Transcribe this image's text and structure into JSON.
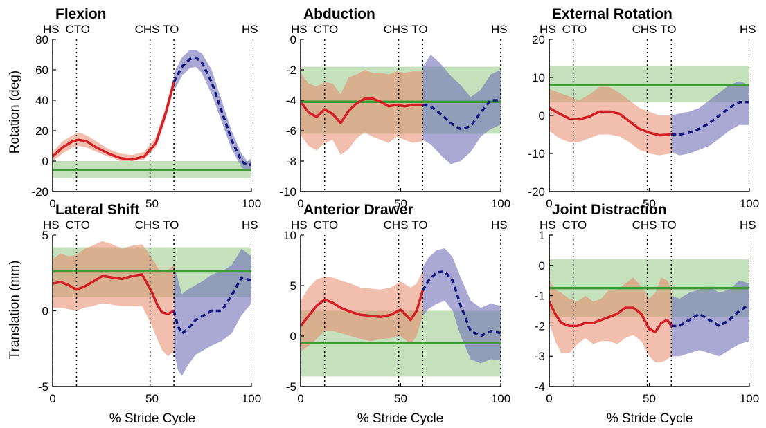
{
  "figure": {
    "ylabel_rotation": "Rotation (deg)",
    "ylabel_translation": "Translation (mm)",
    "xlabel": "% Stride Cycle"
  },
  "chart_data": [
    {
      "type": "line",
      "title": "Flexion",
      "xlabel": "% Stride Cycle",
      "ylabel": "Rotation (deg)",
      "xlim": [
        0,
        100
      ],
      "ylim": [
        -20,
        80
      ],
      "xticks": [
        0,
        50,
        100
      ],
      "yticks": [
        -20,
        0,
        20,
        40,
        60,
        80
      ],
      "events": [
        {
          "label": "HS",
          "x": 0
        },
        {
          "label": "CTO",
          "x": 12
        },
        {
          "label": "CHS",
          "x": 49
        },
        {
          "label": "TO",
          "x": 61
        },
        {
          "label": "HS",
          "x": 100
        }
      ],
      "band": {
        "y": -6,
        "lower": -11,
        "upper": 0
      },
      "stance": {
        "x": [
          0,
          5,
          10,
          13,
          17,
          22,
          28,
          34,
          40,
          46,
          52,
          57,
          61
        ],
        "y": [
          3,
          9,
          13,
          14,
          13,
          9,
          5,
          2,
          1,
          3,
          12,
          32,
          52
        ],
        "lower": [
          0,
          5,
          9,
          10,
          9,
          6,
          3,
          0,
          0,
          1,
          9,
          28,
          48
        ],
        "upper": [
          6,
          13,
          17,
          19,
          17,
          13,
          8,
          5,
          4,
          6,
          16,
          36,
          56
        ]
      },
      "swing": {
        "x": [
          61,
          65,
          69,
          72,
          75,
          80,
          85,
          90,
          95,
          98,
          100
        ],
        "y": [
          52,
          62,
          67,
          68,
          65,
          52,
          33,
          14,
          0,
          -3,
          -2
        ],
        "lower": [
          46,
          56,
          61,
          62,
          58,
          44,
          26,
          8,
          -4,
          -7,
          -5
        ],
        "upper": [
          58,
          68,
          73,
          73,
          71,
          60,
          40,
          20,
          5,
          0,
          2
        ]
      }
    },
    {
      "type": "line",
      "title": "Abduction",
      "xlabel": "% Stride Cycle",
      "ylabel": "",
      "xlim": [
        0,
        100
      ],
      "ylim": [
        -10,
        0
      ],
      "xticks": [
        0,
        50,
        100
      ],
      "yticks": [
        -10,
        -8,
        -6,
        -4,
        -2,
        0
      ],
      "events": [
        {
          "label": "HS",
          "x": 0
        },
        {
          "label": "CTO",
          "x": 12
        },
        {
          "label": "CHS",
          "x": 49
        },
        {
          "label": "TO",
          "x": 61
        },
        {
          "label": "HS",
          "x": 100
        }
      ],
      "band": {
        "y": -4.1,
        "lower": -6.2,
        "upper": -1.8
      },
      "stance": {
        "x": [
          0,
          4,
          8,
          12,
          16,
          20,
          24,
          28,
          32,
          36,
          40,
          44,
          48,
          52,
          56,
          61
        ],
        "y": [
          -4.1,
          -4.8,
          -5.1,
          -4.6,
          -4.9,
          -5.5,
          -4.7,
          -4.2,
          -3.9,
          -3.9,
          -4.1,
          -4.4,
          -4.3,
          -4.4,
          -4.3,
          -4.3
        ],
        "lower": [
          -6.3,
          -7.0,
          -7.3,
          -6.8,
          -6.6,
          -7.6,
          -7.2,
          -6.5,
          -6.1,
          -6.4,
          -6.6,
          -6.8,
          -6.4,
          -6.6,
          -6.8,
          -6.7
        ],
        "upper": [
          -2.2,
          -2.9,
          -3.1,
          -2.8,
          -2.9,
          -3.6,
          -2.5,
          -2.3,
          -2.0,
          -2.2,
          -2.2,
          -2.3,
          -2.1,
          -2.2,
          -2.1,
          -2.1
        ]
      },
      "swing": {
        "x": [
          61,
          65,
          70,
          75,
          80,
          85,
          90,
          95,
          100
        ],
        "y": [
          -4.3,
          -4.4,
          -4.9,
          -5.5,
          -5.9,
          -5.7,
          -4.8,
          -4.0,
          -4.0
        ],
        "lower": [
          -6.6,
          -6.9,
          -7.6,
          -8.2,
          -8.0,
          -7.4,
          -6.4,
          -5.9,
          -5.6
        ],
        "upper": [
          -1.8,
          -1.0,
          -1.6,
          -2.4,
          -3.0,
          -3.8,
          -3.3,
          -2.3,
          -2.0
        ]
      }
    },
    {
      "type": "line",
      "title": "External Rotation",
      "xlabel": "% Stride Cycle",
      "ylabel": "",
      "xlim": [
        0,
        100
      ],
      "ylim": [
        -20,
        20
      ],
      "xticks": [
        0,
        50,
        100
      ],
      "yticks": [
        -20,
        -10,
        0,
        10,
        20
      ],
      "events": [
        {
          "label": "HS",
          "x": 0
        },
        {
          "label": "CTO",
          "x": 12
        },
        {
          "label": "CHS",
          "x": 49
        },
        {
          "label": "TO",
          "x": 61
        },
        {
          "label": "HS",
          "x": 100
        }
      ],
      "band": {
        "y": 8,
        "lower": 3.5,
        "upper": 13
      },
      "stance": {
        "x": [
          0,
          5,
          10,
          15,
          20,
          25,
          30,
          35,
          40,
          45,
          50,
          55,
          61
        ],
        "y": [
          2,
          0.5,
          -0.8,
          -1,
          -0.3,
          1,
          1,
          0.5,
          -1.5,
          -3.5,
          -4.5,
          -5.2,
          -5.0
        ],
        "lower": [
          -4,
          -6,
          -7,
          -7,
          -6,
          -5,
          -5,
          -5.5,
          -7,
          -9,
          -10,
          -10.5,
          -10
        ],
        "upper": [
          7,
          6,
          5,
          4,
          5.5,
          7.5,
          7.5,
          6,
          4,
          2,
          1,
          0,
          0
        ]
      },
      "swing": {
        "x": [
          61,
          65,
          70,
          75,
          80,
          85,
          90,
          95,
          100
        ],
        "y": [
          -5.0,
          -5.0,
          -4.5,
          -3.5,
          -2.0,
          0.0,
          2.0,
          3.5,
          3.5
        ],
        "lower": [
          -9.5,
          -10.5,
          -10,
          -9,
          -8,
          -6,
          -4,
          -2.5,
          -2.5
        ],
        "upper": [
          0,
          0.5,
          1,
          2,
          4,
          6,
          8,
          9,
          8
        ]
      }
    },
    {
      "type": "line",
      "title": "Lateral Shift",
      "xlabel": "% Stride Cycle",
      "ylabel": "Translation (mm)",
      "xlim": [
        0,
        100
      ],
      "ylim": [
        -5,
        5
      ],
      "xticks": [
        0,
        50,
        100
      ],
      "yticks": [
        -5,
        0,
        5
      ],
      "events": [
        {
          "label": "HS",
          "x": 0
        },
        {
          "label": "CTO",
          "x": 12
        },
        {
          "label": "CHS",
          "x": 49
        },
        {
          "label": "TO",
          "x": 61
        },
        {
          "label": "HS",
          "x": 100
        }
      ],
      "band": {
        "y": 2.6,
        "lower": 0.9,
        "upper": 4.2
      },
      "stance": {
        "x": [
          0,
          4,
          8,
          12,
          16,
          20,
          25,
          30,
          35,
          40,
          45,
          50,
          53,
          55,
          58,
          61
        ],
        "y": [
          1.8,
          1.9,
          1.7,
          1.4,
          1.6,
          1.9,
          2.3,
          2.2,
          2.1,
          2.3,
          2.4,
          1.2,
          0.3,
          -0.1,
          -0.2,
          0.0
        ],
        "lower": [
          0.2,
          0.2,
          0.1,
          0.0,
          0.2,
          0.3,
          0.5,
          0.4,
          0.3,
          0.3,
          0.3,
          -1.0,
          -2.0,
          -2.6,
          -3.0,
          -2.7
        ],
        "upper": [
          3.4,
          3.8,
          3.6,
          3.7,
          4.1,
          4.3,
          4.6,
          4.4,
          4.1,
          4.3,
          4.4,
          3.5,
          2.8,
          2.5,
          2.7,
          3.0
        ]
      },
      "swing": {
        "x": [
          61,
          63,
          65,
          68,
          72,
          76,
          80,
          85,
          90,
          95,
          100
        ],
        "y": [
          0.0,
          -1.0,
          -1.5,
          -1.2,
          -0.6,
          -0.3,
          0.0,
          0.0,
          1.0,
          2.2,
          2.0
        ],
        "lower": [
          -2.7,
          -3.9,
          -4.3,
          -3.6,
          -2.9,
          -2.6,
          -2.3,
          -2.0,
          -1.5,
          -0.3,
          0.5
        ],
        "upper": [
          3.0,
          2.1,
          1.1,
          1.4,
          1.7,
          2.0,
          2.4,
          2.6,
          3.0,
          4.1,
          3.6
        ]
      }
    },
    {
      "type": "line",
      "title": "Anterior Drawer",
      "xlabel": "% Stride Cycle",
      "ylabel": "",
      "xlim": [
        0,
        100
      ],
      "ylim": [
        -5,
        10
      ],
      "xticks": [
        0,
        50,
        100
      ],
      "yticks": [
        -5,
        0,
        5,
        10
      ],
      "events": [
        {
          "label": "HS",
          "x": 0
        },
        {
          "label": "CTO",
          "x": 12
        },
        {
          "label": "CHS",
          "x": 49
        },
        {
          "label": "TO",
          "x": 61
        },
        {
          "label": "HS",
          "x": 100
        }
      ],
      "band": {
        "y": -0.7,
        "lower": -4,
        "upper": 2.5
      },
      "stance": {
        "x": [
          0,
          4,
          8,
          12,
          16,
          20,
          25,
          30,
          35,
          40,
          45,
          50,
          55,
          58,
          61
        ],
        "y": [
          1.0,
          2.0,
          3.0,
          3.6,
          3.3,
          2.8,
          2.4,
          2.1,
          2.0,
          1.9,
          2.1,
          2.6,
          1.6,
          2.5,
          4.5
        ],
        "lower": [
          -1.5,
          -1.0,
          -0.3,
          0.5,
          0.5,
          0.3,
          0.0,
          -0.3,
          -0.5,
          -0.3,
          -0.2,
          0.0,
          -0.8,
          0.0,
          2.0
        ],
        "upper": [
          3.5,
          4.8,
          5.6,
          5.9,
          5.8,
          5.5,
          5.2,
          4.8,
          4.7,
          4.6,
          4.8,
          5.4,
          4.8,
          5.2,
          6.5
        ]
      },
      "swing": {
        "x": [
          61,
          64,
          68,
          72,
          76,
          80,
          85,
          90,
          95,
          100
        ],
        "y": [
          4.5,
          5.5,
          6.3,
          6.4,
          5.5,
          3.0,
          0.5,
          0.0,
          0.5,
          0.3
        ],
        "lower": [
          2.0,
          2.7,
          3.2,
          3.5,
          2.5,
          0.0,
          -2.3,
          -2.7,
          -2.3,
          -2.4
        ],
        "upper": [
          6.8,
          7.8,
          8.5,
          8.7,
          7.8,
          5.8,
          3.5,
          2.8,
          3.2,
          3.0
        ]
      }
    },
    {
      "type": "line",
      "title": "Joint Distraction",
      "xlabel": "% Stride Cycle",
      "ylabel": "",
      "xlim": [
        0,
        100
      ],
      "ylim": [
        -4,
        1
      ],
      "xticks": [
        0,
        50,
        100
      ],
      "yticks": [
        -4,
        -3,
        -2,
        -1,
        0,
        1
      ],
      "events": [
        {
          "label": "HS",
          "x": 0
        },
        {
          "label": "CTO",
          "x": 12
        },
        {
          "label": "CHS",
          "x": 49
        },
        {
          "label": "TO",
          "x": 61
        },
        {
          "label": "HS",
          "x": 100
        }
      ],
      "band": {
        "y": -0.75,
        "lower": -1.7,
        "upper": 0.2
      },
      "stance": {
        "x": [
          0,
          3,
          6,
          10,
          14,
          18,
          22,
          26,
          30,
          34,
          38,
          42,
          46,
          50,
          53,
          56,
          59,
          61
        ],
        "y": [
          -1.2,
          -1.6,
          -1.9,
          -2.0,
          -2.0,
          -1.9,
          -1.9,
          -1.8,
          -1.7,
          -1.6,
          -1.4,
          -1.4,
          -1.6,
          -2.1,
          -2.2,
          -1.9,
          -1.8,
          -2.0
        ],
        "lower": [
          -1.9,
          -2.5,
          -2.9,
          -2.9,
          -2.6,
          -2.4,
          -2.6,
          -2.5,
          -2.5,
          -2.6,
          -2.4,
          -2.3,
          -2.5,
          -3.0,
          -3.2,
          -3.2,
          -3.1,
          -3.0
        ],
        "upper": [
          -0.5,
          -0.8,
          -0.9,
          -1.1,
          -1.2,
          -1.0,
          -1.2,
          -1.1,
          -0.8,
          -0.8,
          -0.6,
          -0.4,
          -0.7,
          -1.1,
          -0.9,
          -0.4,
          -0.5,
          -0.8
        ]
      },
      "swing": {
        "x": [
          61,
          65,
          70,
          75,
          80,
          85,
          90,
          95,
          100
        ],
        "y": [
          -2.0,
          -2.0,
          -1.8,
          -1.6,
          -1.8,
          -2.0,
          -1.8,
          -1.5,
          -1.3
        ],
        "lower": [
          -3.0,
          -3.0,
          -2.9,
          -2.8,
          -2.9,
          -3.0,
          -2.8,
          -2.6,
          -2.5
        ],
        "upper": [
          -1.0,
          -1.1,
          -0.9,
          -0.8,
          -0.7,
          -0.9,
          -0.8,
          -0.5,
          -0.6
        ]
      }
    }
  ]
}
